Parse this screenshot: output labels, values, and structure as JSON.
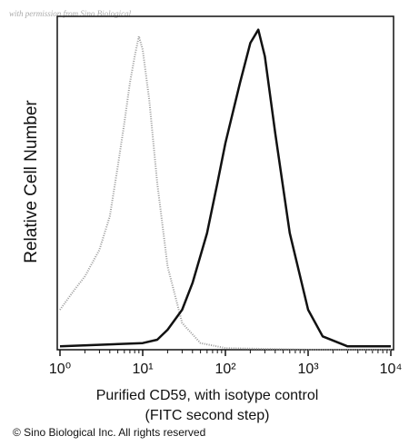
{
  "chart_data": {
    "type": "line",
    "watermark": "with permission from Sino Biological",
    "copyright": "© Sino Biological Inc. All rights reserved",
    "ylabel": "Relative Cell Number",
    "xlabel_lines": [
      "Purified CD59, with isotype control",
      "(FITC second step)"
    ],
    "xscale": "log",
    "xlim": [
      1,
      10000
    ],
    "xticks": [
      {
        "value": 1,
        "label": "10⁰"
      },
      {
        "value": 10,
        "label": "10¹"
      },
      {
        "value": 100,
        "label": "10²"
      },
      {
        "value": 1000,
        "label": "10³"
      },
      {
        "value": 10000,
        "label": "10⁴"
      }
    ],
    "ylim": [
      0,
      100
    ],
    "series": [
      {
        "color": "#9a9a9a",
        "dotted": true,
        "x": [
          1,
          1.5,
          2,
          3,
          4,
          5,
          6,
          7,
          8,
          9,
          10,
          12,
          15,
          20,
          30,
          50,
          100,
          1000,
          10000
        ],
        "values": [
          12,
          18,
          22,
          30,
          40,
          55,
          68,
          80,
          88,
          94,
          90,
          75,
          50,
          25,
          8,
          2,
          0.5,
          0,
          0
        ]
      },
      {
        "color": "#111111",
        "dotted": false,
        "x": [
          1,
          10,
          15,
          20,
          30,
          40,
          60,
          80,
          100,
          150,
          200,
          250,
          300,
          400,
          600,
          1000,
          1500,
          3000,
          10000
        ],
        "values": [
          1,
          2,
          3,
          6,
          12,
          20,
          35,
          50,
          62,
          80,
          92,
          96,
          88,
          65,
          35,
          12,
          4,
          1,
          1
        ]
      }
    ]
  }
}
